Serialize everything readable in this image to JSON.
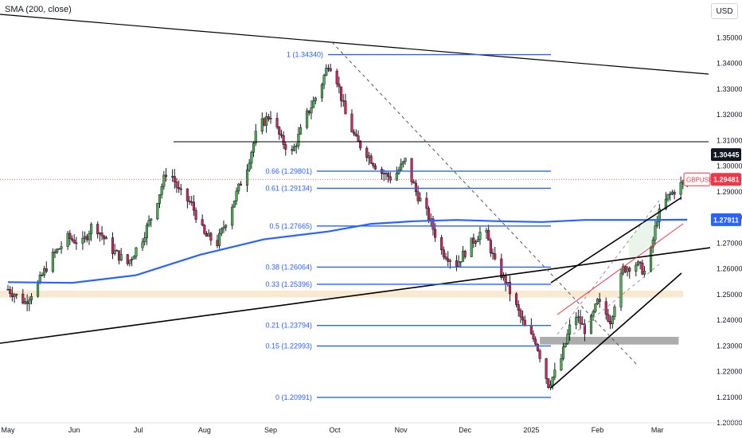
{
  "indicator": "SMA (200, close)",
  "currency": "USD",
  "symbol": "GBPUSD",
  "colors": {
    "up": "#4caf50",
    "down": "#d1245a",
    "wick": "#131722",
    "fib": "#2962ff",
    "sma": "#2962ff",
    "price_line": "#f23645",
    "channel": "#000000",
    "zone": "#f7e4c4",
    "box": "#9e9e9e"
  },
  "chart_data": {
    "type": "candlestick",
    "symbol": "GBPUSD",
    "y_axis": {
      "range": [
        1.2,
        1.3544
      ],
      "ticks": [
        "1.35000",
        "1.34000",
        "1.33000",
        "1.32000",
        "1.31000",
        "1.30000",
        "1.29000",
        "1.28000",
        "1.27000",
        "1.26000",
        "1.25000",
        "1.24000",
        "1.23000",
        "1.22000",
        "1.21000",
        "1.20000"
      ]
    },
    "x_axis": {
      "ticks": [
        {
          "label": "May",
          "day": 0
        },
        {
          "label": "Jun",
          "day": 31
        },
        {
          "label": "Jul",
          "day": 61
        },
        {
          "label": "Aug",
          "day": 92
        },
        {
          "label": "Sep",
          "day": 123
        },
        {
          "label": "Oct",
          "day": 153
        },
        {
          "label": "Nov",
          "day": 184
        },
        {
          "label": "Dec",
          "day": 214
        },
        {
          "label": "2025",
          "day": 245
        },
        {
          "label": "Feb",
          "day": 276
        },
        {
          "label": "Mar",
          "day": 304
        }
      ]
    },
    "price_badges": [
      {
        "label": "1.30445",
        "value": 1.30445,
        "style": "black"
      },
      {
        "label": "1.29481",
        "value": 1.29481,
        "style": "red",
        "symbol": "GBPUSD"
      },
      {
        "label": "1.27911",
        "value": 1.27911,
        "style": "blue"
      }
    ],
    "fib_levels": [
      {
        "label": "1 (1.34340)",
        "value": 1.3434
      },
      {
        "label": "0.66 (1.29801)",
        "value": 1.29801
      },
      {
        "label": "0.61 (1.29134)",
        "value": 1.29134
      },
      {
        "label": "0.5 (1.27665)",
        "value": 1.27665
      },
      {
        "label": "0.38 (1.26064)",
        "value": 1.26064
      },
      {
        "label": "0.33 (1.25396)",
        "value": 1.25396
      },
      {
        "label": "0.21 (1.23794)",
        "value": 1.23794
      },
      {
        "label": "0.15 (1.22993)",
        "value": 1.22993
      },
      {
        "label": "0 (1.20991)",
        "value": 1.20991
      }
    ],
    "anchors": [
      [
        0,
        1.252
      ],
      [
        8,
        1.247
      ],
      [
        14,
        1.254
      ],
      [
        20,
        1.264
      ],
      [
        28,
        1.272
      ],
      [
        35,
        1.27
      ],
      [
        40,
        1.278
      ],
      [
        48,
        1.268
      ],
      [
        56,
        1.262
      ],
      [
        63,
        1.272
      ],
      [
        68,
        1.282
      ],
      [
        75,
        1.3
      ],
      [
        80,
        1.29
      ],
      [
        86,
        1.285
      ],
      [
        92,
        1.273
      ],
      [
        98,
        1.27
      ],
      [
        105,
        1.285
      ],
      [
        112,
        1.3
      ],
      [
        117,
        1.315
      ],
      [
        123,
        1.32
      ],
      [
        128,
        1.31
      ],
      [
        133,
        1.305
      ],
      [
        140,
        1.32
      ],
      [
        146,
        1.33
      ],
      [
        150,
        1.34
      ],
      [
        153,
        1.337
      ],
      [
        158,
        1.32
      ],
      [
        163,
        1.31
      ],
      [
        168,
        1.305
      ],
      [
        174,
        1.298
      ],
      [
        180,
        1.295
      ],
      [
        186,
        1.302
      ],
      [
        191,
        1.29
      ],
      [
        197,
        1.28
      ],
      [
        203,
        1.267
      ],
      [
        210,
        1.262
      ],
      [
        217,
        1.27
      ],
      [
        223,
        1.276
      ],
      [
        228,
        1.262
      ],
      [
        233,
        1.255
      ],
      [
        238,
        1.245
      ],
      [
        243,
        1.235
      ],
      [
        247,
        1.232
      ],
      [
        253,
        1.215
      ],
      [
        258,
        1.222
      ],
      [
        265,
        1.243
      ],
      [
        271,
        1.235
      ],
      [
        276,
        1.247
      ],
      [
        282,
        1.24
      ],
      [
        288,
        1.26
      ],
      [
        294,
        1.262
      ],
      [
        299,
        1.258
      ],
      [
        304,
        1.28
      ],
      [
        309,
        1.288
      ],
      [
        314,
        1.292
      ],
      [
        318,
        1.295
      ]
    ]
  }
}
